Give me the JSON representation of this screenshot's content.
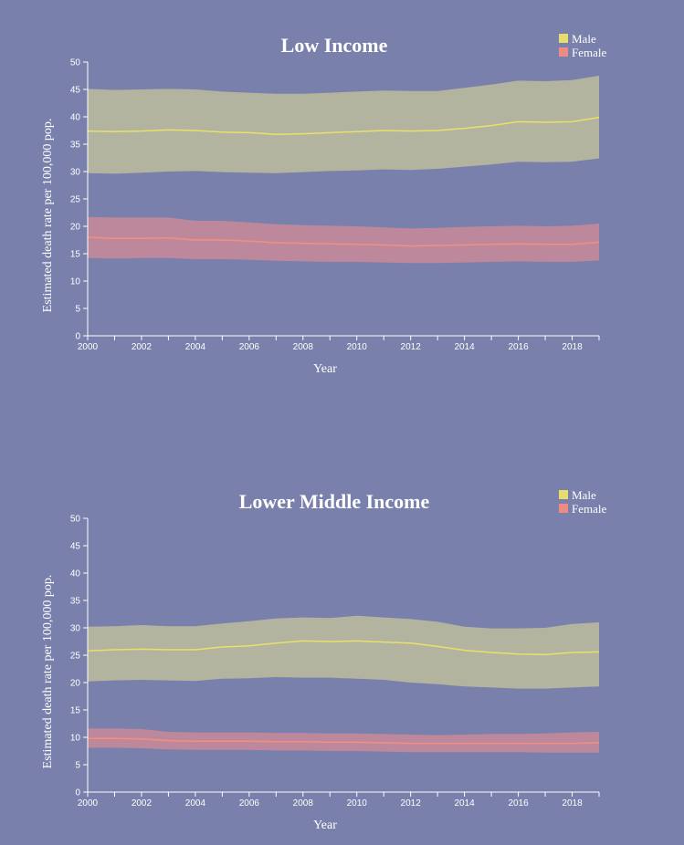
{
  "colors": {
    "background": "#7980ab",
    "male_band": "#c8c79a",
    "male_line": "#e8e06a",
    "female_band": "#d88a96",
    "female_line": "#f09080",
    "legend_male": "#e6dd6c",
    "legend_female": "#ee8b82",
    "axis": "#ffffff",
    "text": "#ffffff"
  },
  "chart_data": [
    {
      "type": "area",
      "title": "Low Income",
      "xlabel": "Year",
      "ylabel": "Estimated death rate per 100,000 pop.",
      "xlim": [
        2000,
        2019
      ],
      "ylim": [
        0,
        50
      ],
      "xticks": [
        "2000",
        "2002",
        "2004",
        "2006",
        "2008",
        "2010",
        "2012",
        "2014",
        "2016",
        "2018"
      ],
      "yticks": [
        "0",
        "5",
        "10",
        "15",
        "20",
        "25",
        "30",
        "35",
        "40",
        "45",
        "50"
      ],
      "legend_placement": "top-right",
      "x": [
        2000,
        2001,
        2002,
        2003,
        2004,
        2005,
        2006,
        2007,
        2008,
        2009,
        2010,
        2011,
        2012,
        2013,
        2014,
        2015,
        2016,
        2017,
        2018,
        2019
      ],
      "series": [
        {
          "name": "Male",
          "values": [
            37.4,
            37.3,
            37.4,
            37.6,
            37.5,
            37.2,
            37.1,
            36.8,
            36.9,
            37.1,
            37.3,
            37.5,
            37.4,
            37.5,
            37.9,
            38.4,
            39.1,
            39.0,
            39.1,
            39.9
          ],
          "lower": [
            29.7,
            29.6,
            29.8,
            30.0,
            30.1,
            29.9,
            29.8,
            29.7,
            29.9,
            30.1,
            30.2,
            30.4,
            30.3,
            30.5,
            30.9,
            31.3,
            31.8,
            31.7,
            31.8,
            32.4
          ],
          "upper": [
            45.1,
            44.9,
            45.0,
            45.1,
            45.0,
            44.6,
            44.4,
            44.2,
            44.2,
            44.4,
            44.6,
            44.8,
            44.7,
            44.7,
            45.3,
            45.9,
            46.6,
            46.5,
            46.7,
            47.5
          ]
        },
        {
          "name": "Female",
          "values": [
            18.0,
            17.8,
            17.8,
            17.9,
            17.5,
            17.5,
            17.3,
            17.0,
            16.9,
            16.8,
            16.7,
            16.6,
            16.4,
            16.5,
            16.6,
            16.7,
            16.8,
            16.7,
            16.7,
            17.1
          ],
          "lower": [
            14.2,
            14.1,
            14.2,
            14.2,
            14.0,
            14.0,
            13.9,
            13.7,
            13.6,
            13.5,
            13.5,
            13.4,
            13.3,
            13.3,
            13.4,
            13.5,
            13.6,
            13.5,
            13.5,
            13.8
          ],
          "upper": [
            21.7,
            21.6,
            21.6,
            21.6,
            21.0,
            21.0,
            20.7,
            20.4,
            20.2,
            20.1,
            20.0,
            19.8,
            19.6,
            19.7,
            19.9,
            20.0,
            20.1,
            20.0,
            20.1,
            20.5
          ]
        }
      ]
    },
    {
      "type": "area",
      "title": "Lower Middle Income",
      "xlabel": "Year",
      "ylabel": "Estimated death rate per 100,000 pop.",
      "xlim": [
        2000,
        2019
      ],
      "ylim": [
        0,
        50
      ],
      "xticks": [
        "2000",
        "2002",
        "2004",
        "2006",
        "2008",
        "2010",
        "2012",
        "2014",
        "2016",
        "2018"
      ],
      "yticks": [
        "0",
        "5",
        "10",
        "15",
        "20",
        "25",
        "30",
        "35",
        "40",
        "45",
        "50"
      ],
      "legend_placement": "top-right",
      "x": [
        2000,
        2001,
        2002,
        2003,
        2004,
        2005,
        2006,
        2007,
        2008,
        2009,
        2010,
        2011,
        2012,
        2013,
        2014,
        2015,
        2016,
        2017,
        2018,
        2019
      ],
      "series": [
        {
          "name": "Male",
          "values": [
            25.8,
            26.0,
            26.1,
            26.0,
            26.0,
            26.5,
            26.7,
            27.2,
            27.6,
            27.5,
            27.6,
            27.4,
            27.2,
            26.6,
            25.9,
            25.5,
            25.2,
            25.1,
            25.5,
            25.6
          ],
          "lower": [
            20.2,
            20.4,
            20.5,
            20.4,
            20.3,
            20.7,
            20.8,
            21.0,
            20.9,
            20.9,
            20.7,
            20.5,
            20.0,
            19.7,
            19.3,
            19.1,
            18.9,
            18.9,
            19.1,
            19.3
          ],
          "upper": [
            30.2,
            30.3,
            30.5,
            30.3,
            30.3,
            30.8,
            31.2,
            31.7,
            31.9,
            31.8,
            32.2,
            31.9,
            31.6,
            31.1,
            30.2,
            29.9,
            29.9,
            30.0,
            30.7,
            31.0
          ]
        },
        {
          "name": "Female",
          "values": [
            9.8,
            9.8,
            9.7,
            9.4,
            9.3,
            9.3,
            9.3,
            9.2,
            9.2,
            9.1,
            9.1,
            9.0,
            8.9,
            8.9,
            8.9,
            8.9,
            8.9,
            8.9,
            8.9,
            9.0
          ],
          "lower": [
            8.1,
            8.1,
            8.0,
            7.8,
            7.7,
            7.7,
            7.7,
            7.6,
            7.6,
            7.5,
            7.5,
            7.4,
            7.3,
            7.3,
            7.3,
            7.3,
            7.3,
            7.2,
            7.2,
            7.2
          ],
          "upper": [
            11.6,
            11.6,
            11.5,
            11.0,
            10.9,
            10.9,
            10.9,
            10.8,
            10.8,
            10.7,
            10.7,
            10.6,
            10.5,
            10.4,
            10.5,
            10.6,
            10.6,
            10.7,
            10.9,
            11.0
          ]
        }
      ]
    }
  ]
}
